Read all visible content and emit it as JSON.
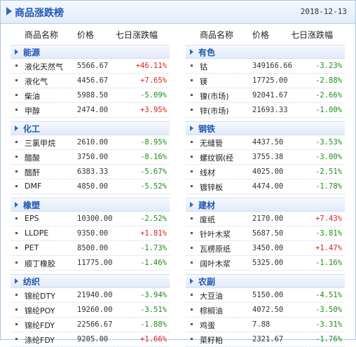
{
  "header": {
    "title": "商品涨跌榜",
    "date": "2018-12-13"
  },
  "columns": {
    "name": "商品名称",
    "price": "价格",
    "change": "七日涨跌幅"
  },
  "colors": {
    "up": "#e02020",
    "down": "#1a8f1a",
    "accent": "#1f57b5"
  },
  "left": [
    {
      "title": "能源",
      "rows": [
        {
          "name": "液化天然气",
          "price": "5566.67",
          "change": "+46.11%",
          "dir": "up"
        },
        {
          "name": "液化气",
          "price": "4456.67",
          "change": "+7.65%",
          "dir": "up"
        },
        {
          "name": "柴油",
          "price": "5988.50",
          "change": "-5.09%",
          "dir": "down"
        },
        {
          "name": "甲醇",
          "price": "2474.00",
          "change": "+3.95%",
          "dir": "up"
        }
      ]
    },
    {
      "title": "化工",
      "rows": [
        {
          "name": "三氯甲烷",
          "price": "2610.00",
          "change": "-8.95%",
          "dir": "down"
        },
        {
          "name": "醋酸",
          "price": "3750.00",
          "change": "-8.16%",
          "dir": "down"
        },
        {
          "name": "醋酐",
          "price": "6383.33",
          "change": "-5.67%",
          "dir": "down"
        },
        {
          "name": "DMF",
          "price": "4850.00",
          "change": "-5.52%",
          "dir": "down"
        }
      ]
    },
    {
      "title": "橡塑",
      "rows": [
        {
          "name": "EPS",
          "price": "10300.00",
          "change": "-2.52%",
          "dir": "down"
        },
        {
          "name": "LLDPE",
          "price": "9350.00",
          "change": "+1.81%",
          "dir": "up"
        },
        {
          "name": "PET",
          "price": "8500.00",
          "change": "-1.73%",
          "dir": "down"
        },
        {
          "name": "顺丁橡胶",
          "price": "11775.00",
          "change": "-1.46%",
          "dir": "down"
        }
      ]
    },
    {
      "title": "纺织",
      "rows": [
        {
          "name": "锦纶DTY",
          "price": "21940.00",
          "change": "-3.94%",
          "dir": "down"
        },
        {
          "name": "锦纶POY",
          "price": "19260.00",
          "change": "-3.51%",
          "dir": "down"
        },
        {
          "name": "锦纶FDY",
          "price": "22566.67",
          "change": "-1.88%",
          "dir": "down"
        },
        {
          "name": "涤纶FDY",
          "price": "9205.00",
          "change": "+1.66%",
          "dir": "up"
        }
      ]
    }
  ],
  "right": [
    {
      "title": "有色",
      "rows": [
        {
          "name": "钴",
          "price": "349166.66",
          "change": "-3.23%",
          "dir": "down"
        },
        {
          "name": "镁",
          "price": "17725.00",
          "change": "-2.88%",
          "dir": "down"
        },
        {
          "name": "镍(市场)",
          "price": "92041.67",
          "change": "-2.66%",
          "dir": "down"
        },
        {
          "name": "锌(市场)",
          "price": "21693.33",
          "change": "-1.00%",
          "dir": "down"
        }
      ]
    },
    {
      "title": "钢铁",
      "rows": [
        {
          "name": "无缝管",
          "price": "4437.50",
          "change": "-3.53%",
          "dir": "down"
        },
        {
          "name": "螺纹钢(经",
          "price": "3755.38",
          "change": "-3.00%",
          "dir": "down"
        },
        {
          "name": "线材",
          "price": "4025.00",
          "change": "-2.51%",
          "dir": "down"
        },
        {
          "name": "镀锌板",
          "price": "4474.00",
          "change": "-1.78%",
          "dir": "down"
        }
      ]
    },
    {
      "title": "建材",
      "rows": [
        {
          "name": "废纸",
          "price": "2170.00",
          "change": "+7.43%",
          "dir": "up"
        },
        {
          "name": "针叶木浆",
          "price": "5687.50",
          "change": "-3.81%",
          "dir": "down"
        },
        {
          "name": "瓦楞原纸",
          "price": "3450.00",
          "change": "+1.47%",
          "dir": "up"
        },
        {
          "name": "阔叶木浆",
          "price": "5325.00",
          "change": "-1.16%",
          "dir": "down"
        }
      ]
    },
    {
      "title": "农副",
      "rows": [
        {
          "name": "大豆油",
          "price": "5150.00",
          "change": "-4.51%",
          "dir": "down"
        },
        {
          "name": "棕榈油",
          "price": "4072.50",
          "change": "-3.50%",
          "dir": "down"
        },
        {
          "name": "鸡蛋",
          "price": "7.88",
          "change": "-3.31%",
          "dir": "down"
        },
        {
          "name": "菜籽粕",
          "price": "2321.67",
          "change": "-1.76%",
          "dir": "down"
        }
      ]
    }
  ]
}
